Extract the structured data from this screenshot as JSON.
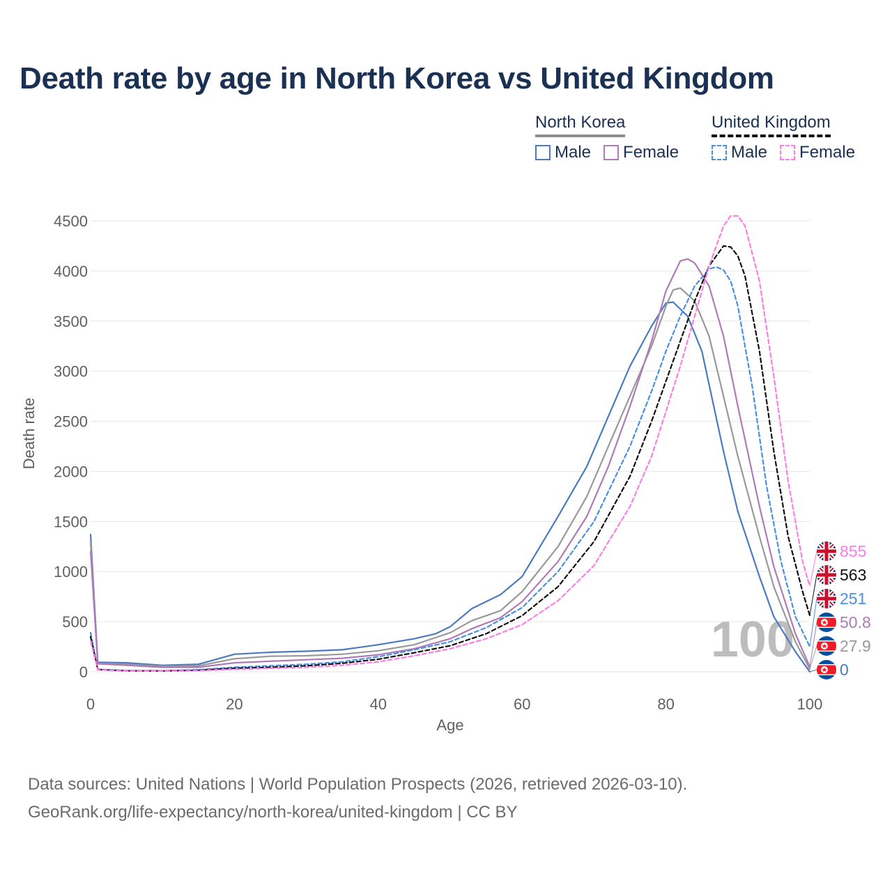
{
  "chart_data": {
    "type": "line",
    "title": "Death rate by age in North Korea vs United Kingdom",
    "xlabel": "Age",
    "ylabel": "Death rate",
    "xlim": [
      0,
      100
    ],
    "ylim": [
      0,
      4500
    ],
    "xticks": [
      "0",
      "20",
      "40",
      "60",
      "80",
      "100"
    ],
    "yticks": [
      "0",
      "500",
      "1000",
      "1500",
      "2000",
      "2500",
      "3000",
      "3500",
      "4000",
      "4500"
    ],
    "watermark": "100",
    "legend": {
      "groups": [
        {
          "name": "North Korea",
          "items": [
            "Male",
            "Female"
          ]
        },
        {
          "name": "United Kingdom",
          "items": [
            "Male",
            "Female"
          ]
        }
      ]
    },
    "series": [
      {
        "name": "North Korea - Male",
        "color": "#4a7bc0",
        "dash": false,
        "end_label": "0",
        "x": [
          0,
          1,
          5,
          10,
          15,
          20,
          25,
          30,
          35,
          40,
          45,
          48,
          50,
          53,
          57,
          60,
          65,
          69,
          72,
          75,
          78,
          80,
          81,
          83,
          85,
          88,
          90,
          93,
          95,
          98,
          100
        ],
        "y": [
          1370,
          95,
          90,
          65,
          75,
          175,
          195,
          205,
          220,
          270,
          330,
          380,
          450,
          630,
          770,
          950,
          1550,
          2050,
          2550,
          3050,
          3450,
          3680,
          3690,
          3550,
          3200,
          2200,
          1600,
          950,
          550,
          200,
          0
        ]
      },
      {
        "name": "North Korea - Total",
        "color": "#999999",
        "dash": false,
        "end_label": "27.9",
        "x": [
          0,
          1,
          5,
          10,
          15,
          20,
          25,
          30,
          35,
          40,
          45,
          50,
          53,
          57,
          60,
          65,
          69,
          72,
          75,
          78,
          80,
          81,
          82,
          84,
          86,
          88,
          90,
          93,
          95,
          98,
          100
        ],
        "y": [
          1290,
          85,
          75,
          55,
          60,
          130,
          155,
          160,
          175,
          210,
          270,
          390,
          510,
          610,
          800,
          1250,
          1750,
          2250,
          2750,
          3250,
          3650,
          3810,
          3830,
          3700,
          3350,
          2750,
          2150,
          1350,
          850,
          300,
          28
        ]
      },
      {
        "name": "North Korea - Female",
        "color": "#b07ab8",
        "dash": false,
        "end_label": "50.8",
        "x": [
          0,
          1,
          5,
          10,
          15,
          20,
          25,
          30,
          35,
          40,
          45,
          50,
          53,
          57,
          60,
          65,
          69,
          72,
          75,
          78,
          80,
          82,
          83,
          84,
          86,
          88,
          90,
          93,
          95,
          98,
          100
        ],
        "y": [
          1200,
          80,
          65,
          45,
          45,
          90,
          105,
          120,
          135,
          170,
          230,
          330,
          430,
          540,
          700,
          1100,
          1550,
          2050,
          2650,
          3300,
          3800,
          4100,
          4120,
          4080,
          3850,
          3350,
          2650,
          1650,
          1050,
          380,
          51
        ]
      },
      {
        "name": "United Kingdom - Male",
        "color": "#4a90e2",
        "dash": true,
        "end_label": "251",
        "x": [
          0,
          1,
          5,
          10,
          15,
          20,
          25,
          30,
          35,
          40,
          45,
          50,
          55,
          60,
          65,
          70,
          75,
          78,
          80,
          82,
          84,
          86,
          87,
          88,
          89,
          90,
          92,
          94,
          96,
          98,
          100
        ],
        "y": [
          390,
          25,
          12,
          10,
          20,
          45,
          60,
          75,
          100,
          150,
          220,
          300,
          440,
          640,
          1000,
          1500,
          2250,
          2800,
          3200,
          3550,
          3850,
          4020,
          4040,
          4010,
          3900,
          3650,
          2850,
          1850,
          1100,
          550,
          251
        ]
      },
      {
        "name": "United Kingdom - Total",
        "color": "#111111",
        "dash": true,
        "end_label": "563",
        "x": [
          0,
          1,
          5,
          10,
          15,
          20,
          25,
          30,
          35,
          40,
          45,
          50,
          55,
          60,
          65,
          70,
          75,
          78,
          80,
          82,
          84,
          86,
          88,
          89,
          90,
          91,
          93,
          95,
          97,
          99,
          100
        ],
        "y": [
          350,
          22,
          10,
          8,
          15,
          35,
          45,
          60,
          85,
          125,
          190,
          260,
          380,
          560,
          850,
          1300,
          1950,
          2500,
          2900,
          3300,
          3700,
          4050,
          4250,
          4240,
          4150,
          3950,
          3200,
          2200,
          1350,
          800,
          563
        ]
      },
      {
        "name": "United Kingdom - Female",
        "color": "#ff7ce4",
        "dash": true,
        "end_label": "855",
        "x": [
          0,
          1,
          5,
          10,
          15,
          20,
          25,
          30,
          35,
          40,
          45,
          50,
          55,
          60,
          65,
          70,
          75,
          78,
          80,
          82,
          84,
          86,
          88,
          89,
          90,
          91,
          93,
          95,
          97,
          99,
          100
        ],
        "y": [
          310,
          20,
          8,
          7,
          12,
          25,
          35,
          45,
          65,
          100,
          160,
          230,
          330,
          470,
          710,
          1060,
          1650,
          2150,
          2600,
          3050,
          3550,
          4050,
          4450,
          4550,
          4550,
          4450,
          3900,
          2950,
          1900,
          1100,
          855
        ]
      }
    ],
    "end_markers": [
      {
        "flag": "united-kingdom-flag-icon",
        "label": "855",
        "color": "#ff7ce4",
        "value": 855
      },
      {
        "flag": "united-kingdom-flag-icon",
        "label": "563",
        "color": "#111111",
        "value": 563
      },
      {
        "flag": "united-kingdom-flag-icon",
        "label": "251",
        "color": "#4a90e2",
        "value": 251
      },
      {
        "flag": "north-korea-flag-icon",
        "label": "50.8",
        "color": "#b07ab8",
        "value": 50.8
      },
      {
        "flag": "north-korea-flag-icon",
        "label": "27.9",
        "color": "#999999",
        "value": 27.9
      },
      {
        "flag": "north-korea-flag-icon",
        "label": "0",
        "color": "#4a7bc0",
        "value": 0
      }
    ]
  },
  "legend": {
    "north_korea": "North Korea",
    "united_kingdom": "United Kingdom",
    "nk_male": "Male",
    "nk_female": "Female",
    "uk_male": "Male",
    "uk_female": "Female"
  },
  "source": {
    "line1": "Data sources: United Nations | World Population Prospects (2026, retrieved 2026-03-10).",
    "line2": "GeoRank.org/life-expectancy/north-korea/united-kingdom | CC BY"
  }
}
